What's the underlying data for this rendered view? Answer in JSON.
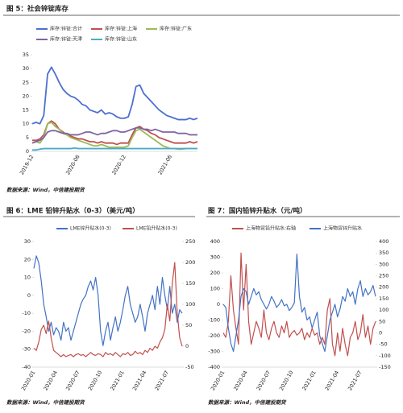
{
  "chart_data": [
    {
      "type": "line",
      "title": "图 5：社会锌锭库存",
      "source": "数据来源：Wind，中信建投期货",
      "categories": [
        "2019-12",
        null,
        null,
        null,
        null,
        null,
        null,
        null,
        null,
        null,
        null,
        null,
        "2020-06",
        null,
        null,
        null,
        null,
        null,
        null,
        null,
        null,
        null,
        null,
        null,
        "2020-12",
        null,
        null,
        null,
        null,
        null,
        null,
        null,
        null,
        null,
        null,
        null,
        "2021-06",
        null,
        null,
        null,
        null,
        null,
        null,
        null
      ],
      "ylim": [
        0,
        35
      ],
      "yticks": [
        0,
        5,
        10,
        15,
        20,
        25,
        30,
        35
      ],
      "series": [
        {
          "name": "库存:锌锭:合计",
          "color": "#4e6fd0",
          "values": [
            10,
            10.5,
            10,
            13,
            28,
            30.5,
            28,
            25,
            22.5,
            21,
            20,
            19.5,
            18.5,
            17,
            16.5,
            15,
            14.5,
            14,
            15,
            13.5,
            14,
            13.5,
            12.5,
            12,
            12,
            12.5,
            17,
            23.5,
            24,
            21,
            19.5,
            18,
            16.5,
            15,
            14,
            13,
            12.5,
            12,
            11.5,
            11.5,
            11.5,
            12,
            11.5,
            12
          ]
        },
        {
          "name": "库存:锌锭:上海",
          "color": "#c0504d",
          "values": [
            4,
            4,
            4.5,
            6,
            10,
            11,
            10,
            8,
            7,
            6,
            5.5,
            5,
            4.5,
            4.5,
            4,
            3.5,
            3.5,
            3,
            3.5,
            3,
            3,
            3,
            2.5,
            3,
            3,
            3,
            6,
            8.5,
            9,
            8,
            7.5,
            6.5,
            6,
            5,
            4.5,
            4,
            3.5,
            3,
            3,
            3,
            3,
            3.5,
            3,
            3.5
          ]
        },
        {
          "name": "库存:锌锭:广东",
          "color": "#9bbb59",
          "values": [
            3,
            3.5,
            3,
            5,
            10,
            10.5,
            9,
            8,
            6.5,
            6,
            5,
            4.5,
            4,
            3.5,
            3,
            2.5,
            2,
            2,
            2.5,
            2,
            1.5,
            1.5,
            1.5,
            1.5,
            1.5,
            2,
            5,
            7.5,
            8,
            7,
            6,
            5,
            4,
            3,
            2,
            1.5,
            1,
            1,
            0.8,
            0.8,
            1,
            1,
            1,
            1
          ]
        },
        {
          "name": "库存:锌锭:天津",
          "color": "#8064a2",
          "values": [
            3,
            3.5,
            4,
            5,
            7,
            7.5,
            7.5,
            7,
            6.5,
            6.5,
            6,
            6,
            6,
            6.5,
            7,
            7,
            6.5,
            6,
            6.5,
            6.5,
            7,
            7.5,
            7.5,
            7,
            7,
            7.5,
            8,
            8.5,
            8.5,
            8,
            8,
            7.5,
            8,
            7.5,
            7,
            7,
            7,
            7,
            6.5,
            6.5,
            6.5,
            6,
            6,
            6
          ]
        },
        {
          "name": "库存:锌锭:山东",
          "color": "#4bacc6",
          "values": [
            0.5,
            0.5,
            0.8,
            1,
            1,
            1,
            1,
            1,
            1,
            1,
            1,
            1.2,
            1,
            1,
            1,
            1,
            1,
            1,
            1,
            1,
            1,
            1,
            1,
            1,
            1,
            1,
            1,
            1,
            1,
            1,
            1,
            1,
            1,
            1,
            1,
            1,
            1,
            1,
            1,
            1,
            1,
            1,
            1,
            1
          ]
        }
      ]
    },
    {
      "type": "line",
      "title": "图 6：LME 铅锌升贴水（0-3）（美元/吨）",
      "source": "数据来源：Wind，中信建投期货",
      "categories": [
        "2020-01",
        null,
        null,
        null,
        null,
        null,
        null,
        null,
        null,
        "2020-04",
        null,
        null,
        null,
        null,
        null,
        null,
        null,
        null,
        "2020-07",
        null,
        null,
        null,
        null,
        null,
        null,
        null,
        null,
        "2020-10",
        null,
        null,
        null,
        null,
        null,
        null,
        null,
        null,
        "2021-01",
        null,
        null,
        null,
        null,
        null,
        null,
        null,
        null,
        "2021-04",
        null,
        null,
        null,
        null,
        null,
        null,
        null,
        null,
        "2021-07",
        null,
        null,
        null,
        null,
        null,
        null
      ],
      "ylim": [
        -40,
        30
      ],
      "yticks": [
        -40,
        -30,
        -20,
        -10,
        0,
        10,
        20,
        30
      ],
      "y2lim": [
        -50,
        250
      ],
      "y2ticks": [
        -50,
        0,
        50,
        100,
        150,
        200,
        250
      ],
      "series": [
        {
          "name": "LME锌升贴水(0-3)",
          "color": "#4472c4",
          "values": [
            15,
            22,
            18,
            8,
            -5,
            -12,
            -20,
            -15,
            -22,
            -18,
            -20,
            -25,
            -15,
            -20,
            -18,
            -25,
            -20,
            -15,
            -10,
            -5,
            -2,
            0,
            5,
            8,
            3,
            10,
            0,
            -20,
            -28,
            -20,
            -15,
            -25,
            -18,
            -12,
            -20,
            -15,
            -8,
            0,
            5,
            -5,
            -10,
            -15,
            -12,
            -5,
            -12,
            -20,
            -10,
            -5,
            0,
            -8,
            5,
            -5,
            10,
            0,
            -8,
            5,
            -10,
            -5,
            -15,
            -8,
            -10
          ]
        },
        {
          "name": "LME铅升贴水(0-3)",
          "color": "#c0504d",
          "axis": "y2",
          "values": [
            -5,
            -10,
            10,
            40,
            50,
            30,
            60,
            20,
            -10,
            -15,
            -20,
            -25,
            -20,
            -25,
            -22,
            -20,
            -25,
            -20,
            -18,
            -22,
            -20,
            -25,
            -20,
            -15,
            -20,
            -22,
            -18,
            -20,
            -25,
            -15,
            -20,
            -18,
            -22,
            -15,
            -20,
            -25,
            -18,
            -20,
            -15,
            -22,
            -20,
            -12,
            -18,
            -15,
            -20,
            -10,
            -15,
            -5,
            -10,
            0,
            -5,
            10,
            20,
            40,
            100,
            60,
            150,
            200,
            80,
            20,
            0
          ]
        }
      ]
    },
    {
      "type": "line",
      "title": "图 7：国内铅锌升贴水（元/吨）",
      "source": "数据来源：Wind，中信建投期货",
      "categories": [
        "2020-01",
        null,
        null,
        null,
        null,
        null,
        null,
        null,
        null,
        "2020-04",
        null,
        null,
        null,
        null,
        null,
        null,
        null,
        null,
        "2020-07",
        null,
        null,
        null,
        null,
        null,
        null,
        null,
        null,
        "2020-10",
        null,
        null,
        null,
        null,
        null,
        null,
        null,
        null,
        "2021-01",
        null,
        null,
        null,
        null,
        null,
        null,
        null,
        null,
        "2021-04",
        null,
        null,
        null,
        null,
        null,
        null,
        null,
        null,
        "2021-07",
        null,
        null,
        null,
        null,
        null,
        null
      ],
      "ylim": [
        -400,
        400
      ],
      "yticks": [
        -400,
        -300,
        -200,
        -100,
        0,
        100,
        200,
        300,
        400
      ],
      "y2lim": [
        -150,
        400
      ],
      "y2ticks": [
        -150,
        -100,
        -50,
        0,
        50,
        100,
        150,
        200,
        250,
        300,
        350,
        400
      ],
      "series": [
        {
          "name": "上海物贸铅升贴水:右轴",
          "color": "#c0504d",
          "axis": "y2",
          "values": [
            0,
            -20,
            50,
            250,
            100,
            20,
            -50,
            350,
            100,
            300,
            50,
            -50,
            0,
            50,
            20,
            -20,
            100,
            0,
            -30,
            20,
            50,
            0,
            -20,
            30,
            0,
            50,
            -20,
            0,
            10,
            -10,
            0,
            20,
            -30,
            0,
            -20,
            20,
            -10,
            0,
            -50,
            -20,
            -50,
            100,
            150,
            -50,
            -100,
            0,
            -80,
            20,
            -50,
            -100,
            -20,
            0,
            50,
            -30,
            0,
            80,
            -20,
            30,
            -50,
            20,
            50
          ]
        },
        {
          "name": "上海物贸锌升贴水",
          "color": "#4472c4",
          "values": [
            0,
            -20,
            -150,
            -250,
            -300,
            -200,
            -100,
            50,
            100,
            80,
            0,
            50,
            100,
            60,
            80,
            30,
            0,
            -30,
            0,
            50,
            20,
            -20,
            0,
            30,
            -10,
            0,
            -40,
            -20,
            10,
            320,
            50,
            -50,
            -20,
            -100,
            -80,
            -150,
            -100,
            -50,
            -200,
            -250,
            -300,
            -200,
            -100,
            -50,
            0,
            -80,
            -30,
            50,
            20,
            100,
            50,
            80,
            0,
            100,
            150,
            50,
            100,
            60,
            80,
            120,
            50
          ]
        }
      ]
    }
  ]
}
